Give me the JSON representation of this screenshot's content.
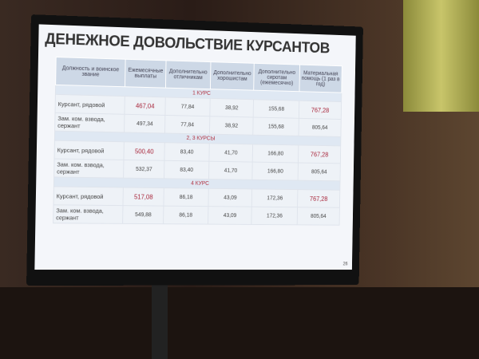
{
  "title": "ДЕНЕЖНОЕ ДОВОЛЬСТВИЕ КУРСАНТОВ",
  "table": {
    "header": [
      "Должность и воинское звание",
      "Ежемесячные выплаты",
      "Дополнительно отличникам",
      "Дополнительно хорошистам",
      "Дополнительно сиротам (ежемесячно)",
      "Материальная помощь (1 раз в год)"
    ],
    "sections": [
      {
        "label": "1 КУРС",
        "rows": [
          [
            "Курсант, рядовой",
            "467,04",
            "77,84",
            "38,92",
            "155,68",
            "767,28"
          ],
          [
            "Зам. ком. взвода, сержант",
            "497,34",
            "77,84",
            "38,92",
            "155,68",
            "805,64"
          ]
        ]
      },
      {
        "label": "2, 3 КУРСЫ",
        "rows": [
          [
            "Курсант, рядовой",
            "500,40",
            "83,40",
            "41,70",
            "166,80",
            "767,28"
          ],
          [
            "Зам. ком. взвода, сержант",
            "532,37",
            "83,40",
            "41,70",
            "166,80",
            "805,64"
          ]
        ]
      },
      {
        "label": "4 КУРС",
        "rows": [
          [
            "Курсант, рядовой",
            "517,08",
            "86,18",
            "43,09",
            "172,36",
            "767,28"
          ],
          [
            "Зам. ком. взвода, сержант",
            "549,88",
            "86,18",
            "43,09",
            "172,36",
            "805,64"
          ]
        ]
      }
    ]
  },
  "page_number": "26"
}
